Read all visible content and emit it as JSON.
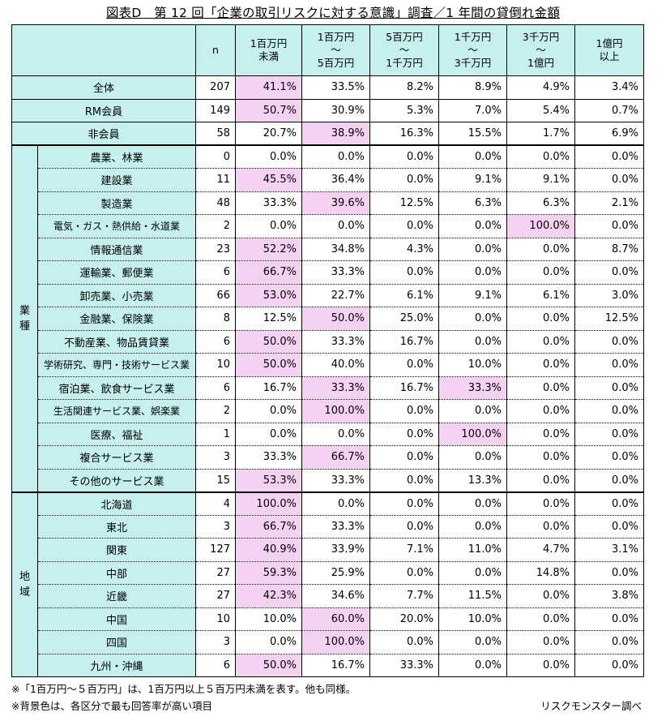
{
  "title": "図表D　第 12 回「企業の取引リスクに対する意識」調査／1 年間の貸倒れ金額",
  "header": {
    "n": "n",
    "cols": [
      [
        "1百万円",
        "未満"
      ],
      [
        "1百万円",
        "～",
        "5百万円"
      ],
      [
        "5百万円",
        "～",
        "1千万円"
      ],
      [
        "1千万円",
        "～",
        "3千万円"
      ],
      [
        "3千万円",
        "～",
        "1億円"
      ],
      [
        "1億円",
        "以上"
      ]
    ]
  },
  "groups": {
    "industry": "業\n種",
    "region": "地\n域"
  },
  "rows": [
    {
      "label": "全体",
      "n": "207",
      "v": [
        "41.1%",
        "33.5%",
        "8.2%",
        "8.9%",
        "4.9%",
        "3.4%"
      ],
      "hl": 0
    },
    {
      "label": "RM会員",
      "n": "149",
      "v": [
        "50.7%",
        "30.9%",
        "5.3%",
        "7.0%",
        "5.4%",
        "0.7%"
      ],
      "hl": 0
    },
    {
      "label": "非会員",
      "n": "58",
      "v": [
        "20.7%",
        "38.9%",
        "16.3%",
        "15.5%",
        "1.7%",
        "6.9%"
      ],
      "hl": 1
    },
    {
      "label": "農業、林業",
      "n": "0",
      "v": [
        "0.0%",
        "0.0%",
        "0.0%",
        "0.0%",
        "0.0%",
        "0.0%"
      ],
      "hl": -1
    },
    {
      "label": "建設業",
      "n": "11",
      "v": [
        "45.5%",
        "36.4%",
        "0.0%",
        "9.1%",
        "9.1%",
        "0.0%"
      ],
      "hl": 0
    },
    {
      "label": "製造業",
      "n": "48",
      "v": [
        "33.3%",
        "39.6%",
        "12.5%",
        "6.3%",
        "6.3%",
        "2.1%"
      ],
      "hl": 1
    },
    {
      "label": "電気・ガス・熱供給・水道業",
      "n": "2",
      "v": [
        "0.0%",
        "0.0%",
        "0.0%",
        "0.0%",
        "100.0%",
        "0.0%"
      ],
      "hl": 4
    },
    {
      "label": "情報通信業",
      "n": "23",
      "v": [
        "52.2%",
        "34.8%",
        "4.3%",
        "0.0%",
        "0.0%",
        "8.7%"
      ],
      "hl": 0
    },
    {
      "label": "運輸業、郵便業",
      "n": "6",
      "v": [
        "66.7%",
        "33.3%",
        "0.0%",
        "0.0%",
        "0.0%",
        "0.0%"
      ],
      "hl": 0
    },
    {
      "label": "卸売業、小売業",
      "n": "66",
      "v": [
        "53.0%",
        "22.7%",
        "6.1%",
        "9.1%",
        "6.1%",
        "3.0%"
      ],
      "hl": 0
    },
    {
      "label": "金融業、保険業",
      "n": "8",
      "v": [
        "12.5%",
        "50.0%",
        "25.0%",
        "0.0%",
        "0.0%",
        "12.5%"
      ],
      "hl": 1
    },
    {
      "label": "不動産業、物品賃貸業",
      "n": "6",
      "v": [
        "50.0%",
        "33.3%",
        "16.7%",
        "0.0%",
        "0.0%",
        "0.0%"
      ],
      "hl": 0
    },
    {
      "label": "学術研究、専門・技術サービス業",
      "n": "10",
      "v": [
        "50.0%",
        "40.0%",
        "0.0%",
        "10.0%",
        "0.0%",
        "0.0%"
      ],
      "hl": 0
    },
    {
      "label": "宿泊業、飲食サービス業",
      "n": "6",
      "v": [
        "16.7%",
        "33.3%",
        "16.7%",
        "33.3%",
        "0.0%",
        "0.0%"
      ],
      "hl": [
        1,
        3
      ]
    },
    {
      "label": "生活関連サービス業、娯楽業",
      "n": "2",
      "v": [
        "0.0%",
        "100.0%",
        "0.0%",
        "0.0%",
        "0.0%",
        "0.0%"
      ],
      "hl": 1
    },
    {
      "label": "医療、福祉",
      "n": "1",
      "v": [
        "0.0%",
        "0.0%",
        "0.0%",
        "100.0%",
        "0.0%",
        "0.0%"
      ],
      "hl": 3
    },
    {
      "label": "複合サービス業",
      "n": "3",
      "v": [
        "33.3%",
        "66.7%",
        "0.0%",
        "0.0%",
        "0.0%",
        "0.0%"
      ],
      "hl": 1
    },
    {
      "label": "その他のサービス業",
      "n": "15",
      "v": [
        "53.3%",
        "33.3%",
        "0.0%",
        "13.3%",
        "0.0%",
        "0.0%"
      ],
      "hl": 0
    },
    {
      "label": "北海道",
      "n": "4",
      "v": [
        "100.0%",
        "0.0%",
        "0.0%",
        "0.0%",
        "0.0%",
        "0.0%"
      ],
      "hl": 0
    },
    {
      "label": "東北",
      "n": "3",
      "v": [
        "66.7%",
        "33.3%",
        "0.0%",
        "0.0%",
        "0.0%",
        "0.0%"
      ],
      "hl": 0
    },
    {
      "label": "関東",
      "n": "127",
      "v": [
        "40.9%",
        "33.9%",
        "7.1%",
        "11.0%",
        "4.7%",
        "3.1%"
      ],
      "hl": 0
    },
    {
      "label": "中部",
      "n": "27",
      "v": [
        "59.3%",
        "25.9%",
        "0.0%",
        "0.0%",
        "14.8%",
        "0.0%"
      ],
      "hl": 0
    },
    {
      "label": "近畿",
      "n": "27",
      "v": [
        "42.3%",
        "34.6%",
        "7.7%",
        "11.5%",
        "0.0%",
        "3.8%"
      ],
      "hl": 0
    },
    {
      "label": "中国",
      "n": "10",
      "v": [
        "10.0%",
        "60.0%",
        "20.0%",
        "10.0%",
        "0.0%",
        "0.0%"
      ],
      "hl": 1
    },
    {
      "label": "四国",
      "n": "3",
      "v": [
        "0.0%",
        "100.0%",
        "0.0%",
        "0.0%",
        "0.0%",
        "0.0%"
      ],
      "hl": 1
    },
    {
      "label": "九州・沖縄",
      "n": "6",
      "v": [
        "50.0%",
        "16.7%",
        "33.3%",
        "0.0%",
        "0.0%",
        "0.0%"
      ],
      "hl": 0
    }
  ],
  "footnotes": [
    "※「1百万円～５百万円」は、1百万円以上５百万円未満を表す。他も同様。",
    "※背景色は、各区分で最も回答率が高い項目"
  ],
  "source": "リスクモンスター調べ"
}
